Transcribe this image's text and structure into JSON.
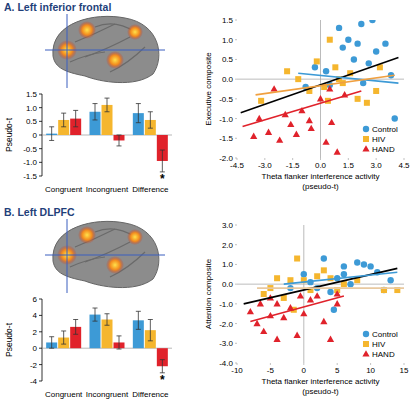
{
  "chart_data": [
    {
      "type": "bar",
      "title": "A. Left inferior frontal",
      "y_label": "Pseudo-t",
      "categories": [
        "Congruent",
        "Incongruent",
        "Difference"
      ],
      "ylim": [
        -1.5,
        1.5
      ],
      "yticks": [
        1.5,
        {
          "value": 1,
          "label": "1.0"
        },
        0.5,
        0,
        -0.5,
        {
          "value": -1,
          "label": "-1.0"
        },
        -1.5
      ],
      "series": [
        {
          "color": "#3d9ad6",
          "values": [
            0.05,
            0.85,
            0.8
          ],
          "errors": [
            0.25,
            0.3,
            0.35
          ]
        },
        {
          "color": "#f5b62e",
          "values": [
            0.55,
            1.1,
            0.55
          ],
          "errors": [
            0.25,
            0.25,
            0.3
          ]
        },
        {
          "color": "#e0222b",
          "values": [
            0.6,
            -0.2,
            -0.95
          ],
          "errors": [
            0.3,
            0.2,
            0.4
          ]
        }
      ],
      "annotations": [
        {
          "text": "*",
          "series": 2,
          "category": 2
        }
      ]
    },
    {
      "type": "scatter",
      "x_label": "Theta flanker interference activity (pseudo-t)",
      "y_label": "Executive composite",
      "xlim": [
        -4.5,
        4.5
      ],
      "xticks": [
        -4.5,
        {
          "value": -3,
          "label": "-3.0"
        },
        -1.5,
        {
          "value": 0,
          "label": "0.0"
        },
        1.5,
        {
          "value": 3,
          "label": "3.0"
        },
        4.5
      ],
      "ylim": [
        -2,
        1.5
      ],
      "yticks": [
        1.5,
        {
          "value": 1,
          "label": "1.0"
        },
        0.5,
        {
          "value": 0,
          "label": "0.0"
        },
        -0.5,
        {
          "value": -1,
          "label": "-1.0"
        },
        -1.5,
        {
          "value": -2,
          "label": "-2.0"
        }
      ],
      "legend": "lower right",
      "series": [
        {
          "name": "Control",
          "color": "#3d9ad6",
          "marker": "circle",
          "x": [
            -0.3,
            0.3,
            1.0,
            1.5,
            2.0,
            2.2,
            1.8,
            2.6,
            3.0,
            3.5,
            3.8,
            4.0,
            2.3,
            0.5,
            -0.8,
            1.2,
            2.8
          ],
          "values": [
            0.3,
            0.2,
            1.3,
            1.0,
            0.9,
            1.4,
            0.5,
            0.4,
            0.7,
            0.9,
            0.1,
            -1.0,
            -0.1,
            -0.15,
            -0.2,
            0.8,
            1.5
          ]
        },
        {
          "name": "HIV",
          "color": "#f5b62e",
          "marker": "square",
          "x": [
            -3.2,
            -1.8,
            -1.2,
            -0.6,
            0.2,
            0.4,
            0.5,
            0.8,
            1.0,
            1.6,
            2.0,
            2.5,
            3.0,
            3.2,
            1.2,
            -0.2
          ],
          "values": [
            -0.55,
            0.2,
            0.0,
            -0.3,
            -0.2,
            -0.55,
            1.0,
            0.3,
            0.0,
            0.15,
            -0.5,
            -0.6,
            -0.3,
            0.3,
            -0.1,
            0.45
          ]
        },
        {
          "name": "HAND",
          "color": "#e0222b",
          "marker": "triangle",
          "x": [
            -3.6,
            -3.3,
            -2.8,
            -2.2,
            -1.9,
            -1.6,
            -1.3,
            -1.0,
            -0.6,
            -0.5,
            0.0,
            0.3,
            0.6,
            0.9,
            1.3,
            0.5,
            -2.5
          ],
          "values": [
            -1.45,
            -1.0,
            -1.35,
            -1.55,
            -0.9,
            -1.15,
            -1.4,
            -0.8,
            -1.05,
            -1.25,
            -0.5,
            -1.6,
            -1.1,
            -1.85,
            -0.4,
            -0.25,
            -0.25
          ]
        },
        {
          "type": "line",
          "color": "#000000",
          "x": [
            -4.3,
            4.2
          ],
          "values": [
            -0.85,
            0.55
          ]
        },
        {
          "type": "line",
          "color": "#3d9ad6",
          "x": [
            -1.2,
            4.2
          ],
          "values": [
            0.15,
            -0.1
          ]
        },
        {
          "type": "line",
          "color": "#f0a040",
          "x": [
            -3.5,
            4.0
          ],
          "values": [
            -0.4,
            0.1
          ]
        },
        {
          "type": "line",
          "color": "#e0222b",
          "x": [
            -4.2,
            2.2
          ],
          "values": [
            -1.2,
            -0.3
          ]
        }
      ]
    },
    {
      "type": "bar",
      "title": "B. Left DLPFC",
      "y_label": "Pseudo-t",
      "categories": [
        "Congruent",
        "Incongruent",
        "Difference"
      ],
      "ylim": [
        -4,
        6
      ],
      "yticks": [
        6,
        4,
        2,
        0,
        -2,
        -4
      ],
      "series": [
        {
          "color": "#3d9ad6",
          "values": [
            0.7,
            4.1,
            3.4
          ],
          "errors": [
            0.7,
            0.8,
            1.1
          ]
        },
        {
          "color": "#f5b62e",
          "values": [
            1.3,
            3.5,
            2.2
          ],
          "errors": [
            0.8,
            0.7,
            1.3
          ]
        },
        {
          "color": "#e0222b",
          "values": [
            2.6,
            0.7,
            -2.2
          ],
          "errors": [
            0.9,
            0.8,
            0.8
          ]
        }
      ],
      "annotations": [
        {
          "text": "*",
          "series": 2,
          "category": 2
        }
      ]
    },
    {
      "type": "scatter",
      "x_label": "Theta flanker interference activity (pseudo-t)",
      "y_label": "Attention composite",
      "xlim": [
        -10,
        15
      ],
      "xticks": [
        -10,
        -5,
        0,
        5,
        10,
        15
      ],
      "ylim": [
        -4,
        3
      ],
      "yticks": [
        {
          "value": 3,
          "label": "3.0"
        },
        {
          "value": 2,
          "label": "2.0"
        },
        {
          "value": 1,
          "label": "1.0"
        },
        {
          "value": 0,
          "label": "0.0"
        },
        {
          "value": -1,
          "label": "-1.0"
        },
        {
          "value": -2,
          "label": "-2.0"
        },
        {
          "value": -3,
          "label": "-3.0"
        },
        {
          "value": -4,
          "label": "-4.0"
        }
      ],
      "legend": "lower right",
      "series": [
        {
          "name": "Control",
          "color": "#3d9ad6",
          "marker": "circle",
          "x": [
            0,
            1,
            2,
            3,
            4,
            5,
            6,
            7,
            8,
            9,
            10,
            11,
            12,
            13,
            4.5,
            -2,
            6
          ],
          "values": [
            0.5,
            0.1,
            -0.2,
            1.3,
            -0.4,
            0.3,
            0.5,
            0.0,
            1.1,
            1.0,
            0.9,
            0.6,
            -0.3,
            0.2,
            -1.3,
            -0.2,
            0.9
          ]
        },
        {
          "name": "HIV",
          "color": "#f5b62e",
          "marker": "square",
          "x": [
            -6,
            -5,
            -4,
            -3,
            -2,
            -1,
            0,
            1,
            2,
            3,
            4,
            5,
            -1.5,
            6,
            8,
            12,
            14
          ],
          "values": [
            -0.5,
            -0.2,
            0.3,
            -0.7,
            0.2,
            1.3,
            0.2,
            -0.3,
            0.4,
            0.7,
            0.3,
            -0.3,
            -1.3,
            0.0,
            0.2,
            -0.3,
            -0.3
          ]
        },
        {
          "name": "HAND",
          "color": "#e0222b",
          "marker": "triangle",
          "x": [
            -8,
            -7,
            -6.5,
            -6,
            -5,
            -5,
            -4,
            -4,
            -3,
            -2,
            -1,
            -0.5,
            0,
            1,
            2,
            3,
            4,
            5,
            5
          ],
          "values": [
            -1.4,
            -2.0,
            -1.0,
            -2.4,
            -0.7,
            -1.6,
            -1.0,
            -2.8,
            -1.7,
            -1.2,
            -2.6,
            -0.6,
            -1.5,
            -0.8,
            -0.6,
            -1.9,
            -2.8,
            -1.0,
            -0.5
          ]
        },
        {
          "type": "line",
          "color": "#000000",
          "x": [
            -9,
            14
          ],
          "values": [
            -1.0,
            0.8
          ]
        },
        {
          "type": "line",
          "color": "#3d9ad6",
          "x": [
            -3,
            14
          ],
          "values": [
            0.0,
            0.6
          ]
        },
        {
          "type": "line",
          "color": "#e8c9a0",
          "x": [
            -7,
            15
          ],
          "values": [
            -0.2,
            -0.2
          ]
        },
        {
          "type": "line",
          "color": "#e0222b",
          "x": [
            -8,
            6
          ],
          "values": [
            -1.9,
            -0.6
          ]
        }
      ]
    }
  ]
}
